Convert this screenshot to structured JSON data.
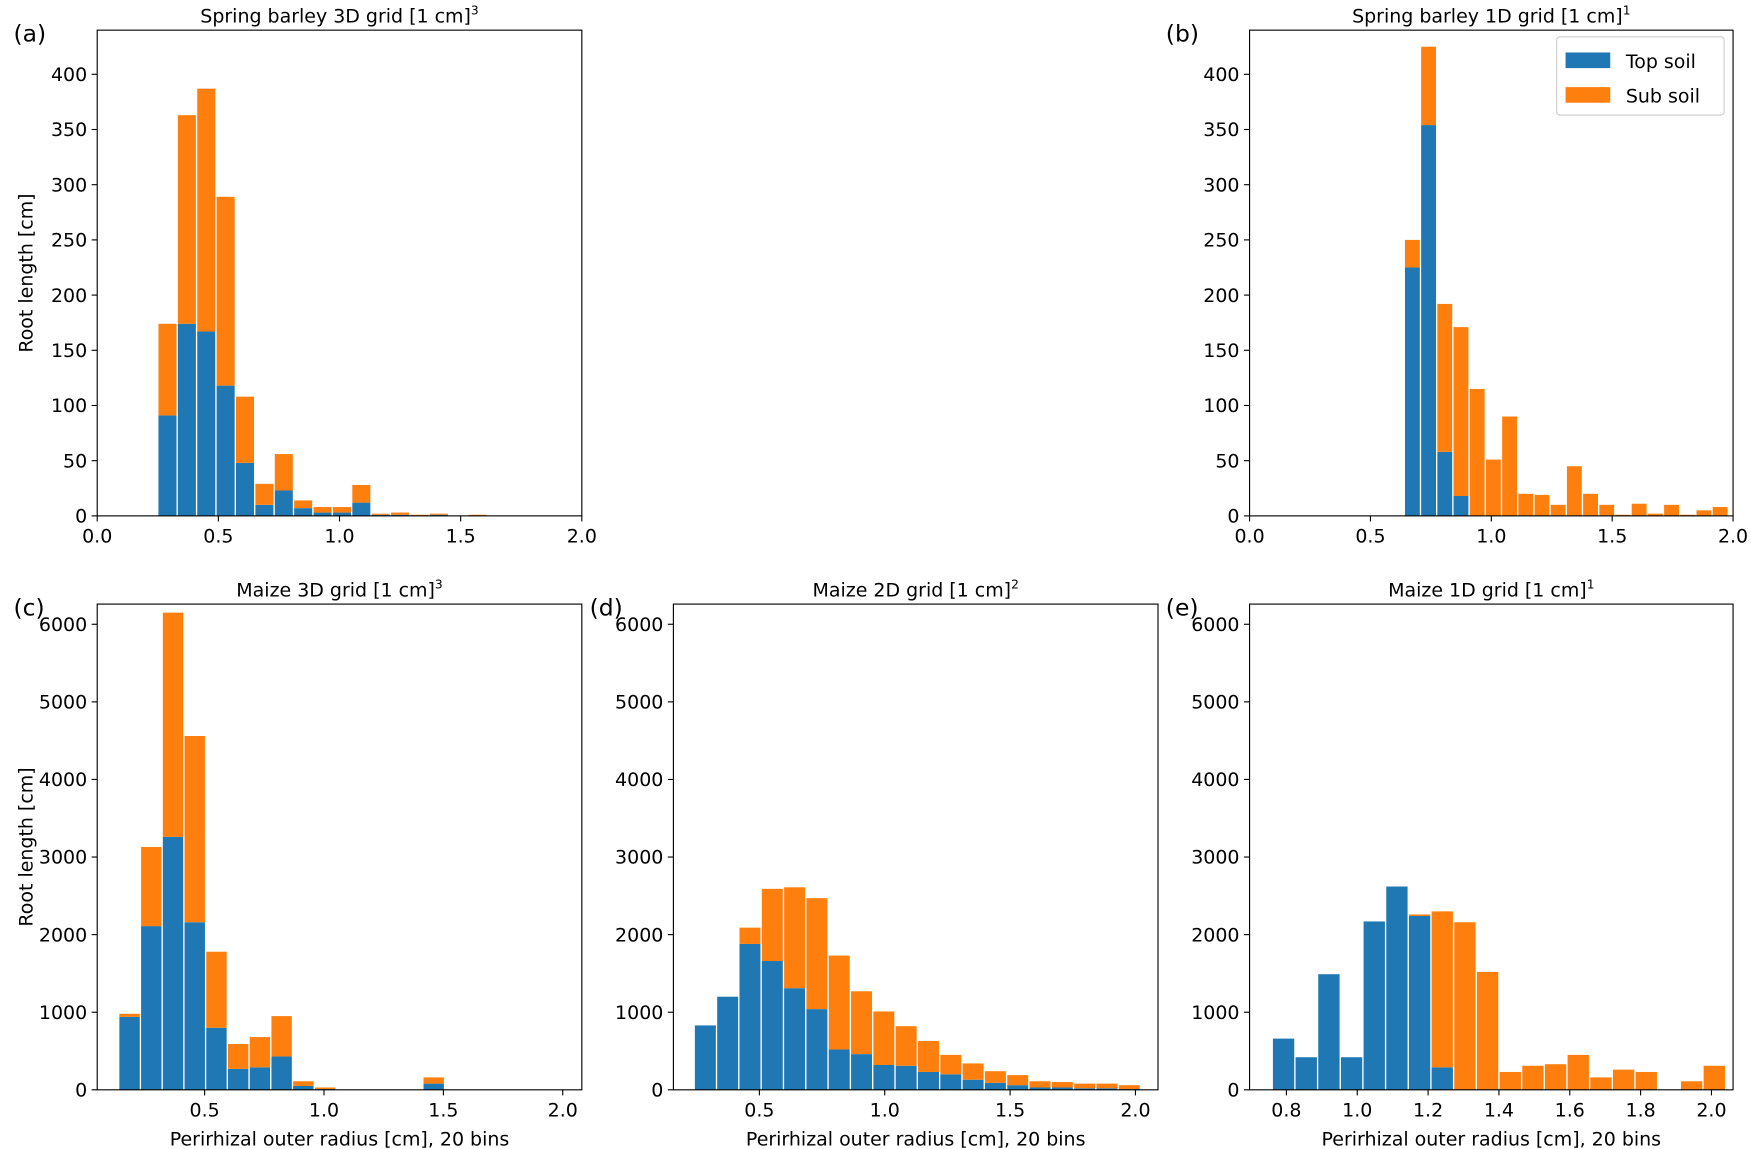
{
  "chart_data": [
    {
      "type": "histogram",
      "panel_label": "(a)",
      "title": "Spring barley 3D grid [1 cm]",
      "title_sup": "3",
      "ylabel": "Root length [cm]",
      "bins": [
        0.25,
        0.33,
        0.41,
        0.49,
        0.57,
        0.65,
        0.73,
        0.81,
        0.89,
        0.97,
        1.05,
        1.13,
        1.21,
        1.29,
        1.37,
        1.45,
        1.53,
        1.61,
        1.69,
        1.77,
        1.85
      ],
      "series": [
        {
          "name": "Top soil",
          "color": "#1f77b4",
          "values": [
            91,
            174,
            167,
            118,
            48,
            10,
            23,
            7,
            3,
            3,
            12,
            1,
            1,
            0,
            1,
            0,
            0,
            0,
            0,
            0
          ]
        },
        {
          "name": "Sub soil",
          "color": "#ff7f0e",
          "values": [
            83,
            189,
            220,
            171,
            60,
            19,
            33,
            7,
            5,
            5,
            16,
            1,
            2,
            1,
            1,
            0,
            1,
            0,
            0,
            0
          ]
        }
      ],
      "xlim": [
        0,
        2
      ],
      "ylim": [
        0,
        440
      ],
      "xticks": [
        {
          "value": 0,
          "label": "0.0"
        },
        0.5,
        {
          "value": 1,
          "label": "1.0"
        },
        1.5,
        {
          "value": 2,
          "label": "2.0"
        }
      ],
      "yticks": [
        0,
        50,
        100,
        150,
        200,
        250,
        300,
        350,
        400
      ]
    },
    {
      "type": "histogram",
      "panel_label": "(b)",
      "title": "Spring barley 1D grid [1 cm]",
      "title_sup": "1",
      "legend": "upper right",
      "bins": [
        0.64,
        0.707,
        0.774,
        0.841,
        0.908,
        0.975,
        1.042,
        1.109,
        1.176,
        1.243,
        1.31,
        1.377,
        1.444,
        1.511,
        1.578,
        1.645,
        1.712,
        1.779,
        1.846,
        1.913,
        1.98
      ],
      "series": [
        {
          "name": "Top soil",
          "color": "#1f77b4",
          "values": [
            225,
            354,
            58,
            18,
            0,
            0,
            0,
            0,
            0,
            0,
            0,
            0,
            0,
            0,
            0,
            0,
            0,
            0,
            0,
            0
          ]
        },
        {
          "name": "Sub soil",
          "color": "#ff7f0e",
          "values": [
            25,
            71,
            134,
            153,
            115,
            51,
            90,
            20,
            19,
            10,
            45,
            20,
            10,
            1,
            11,
            2,
            10,
            1,
            5,
            8
          ]
        }
      ],
      "xlim": [
        0,
        2
      ],
      "ylim": [
        0,
        440
      ],
      "xticks": [
        {
          "value": 0,
          "label": "0.0"
        },
        0.5,
        {
          "value": 1,
          "label": "1.0"
        },
        1.5,
        {
          "value": 2,
          "label": "2.0"
        }
      ],
      "yticks": [
        0,
        50,
        100,
        150,
        200,
        250,
        300,
        350,
        400
      ]
    },
    {
      "type": "histogram",
      "panel_label": "(c)",
      "title": "Maize 3D grid [1 cm]",
      "title_sup": "3",
      "ylabel": "Root length [cm]",
      "xlabel": "Perirhizal outer radius [cm], 20 bins",
      "bins": [
        0.14,
        0.231,
        0.322,
        0.413,
        0.504,
        0.595,
        0.686,
        0.777,
        0.868,
        0.959,
        1.05,
        1.141,
        1.232,
        1.323,
        1.414,
        1.505,
        1.596,
        1.687,
        1.778,
        1.869,
        1.96
      ],
      "series": [
        {
          "name": "Top soil",
          "color": "#1f77b4",
          "values": [
            940,
            2110,
            3260,
            2160,
            800,
            270,
            290,
            430,
            50,
            10,
            0,
            0,
            0,
            0,
            80,
            0,
            0,
            0,
            0,
            0
          ]
        },
        {
          "name": "Sub soil",
          "color": "#ff7f0e",
          "values": [
            40,
            1020,
            2890,
            2400,
            980,
            320,
            390,
            520,
            60,
            20,
            0,
            0,
            0,
            0,
            80,
            0,
            0,
            0,
            0,
            0
          ]
        }
      ],
      "xlim": [
        0.05,
        2.08
      ],
      "ylim": [
        0,
        6260
      ],
      "xticks": [
        0.5,
        {
          "value": 1,
          "label": "1.0"
        },
        1.5,
        {
          "value": 2,
          "label": "2.0"
        }
      ],
      "yticks": [
        0,
        1000,
        2000,
        3000,
        4000,
        5000,
        6000
      ]
    },
    {
      "type": "histogram",
      "panel_label": "(d)",
      "title": "Maize 2D grid [1 cm]",
      "title_sup": "2",
      "xlabel": "Perirhizal outer radius [cm], 20 bins",
      "bins": [
        0.24,
        0.329,
        0.418,
        0.507,
        0.596,
        0.685,
        0.774,
        0.863,
        0.952,
        1.041,
        1.13,
        1.219,
        1.308,
        1.397,
        1.486,
        1.575,
        1.664,
        1.753,
        1.842,
        1.931,
        2.02
      ],
      "series": [
        {
          "name": "Top soil",
          "color": "#1f77b4",
          "values": [
            830,
            1200,
            1880,
            1660,
            1310,
            1040,
            520,
            460,
            320,
            310,
            230,
            200,
            130,
            90,
            60,
            30,
            30,
            20,
            20,
            10
          ]
        },
        {
          "name": "Sub soil",
          "color": "#ff7f0e",
          "values": [
            0,
            0,
            210,
            930,
            1300,
            1430,
            1210,
            810,
            690,
            510,
            400,
            250,
            210,
            150,
            130,
            80,
            70,
            60,
            60,
            50
          ]
        }
      ],
      "xlim": [
        0.157,
        2.09
      ],
      "ylim": [
        0,
        6260
      ],
      "xticks": [
        0.5,
        {
          "value": 1,
          "label": "1.0"
        },
        1.5,
        {
          "value": 2,
          "label": "2.0"
        }
      ],
      "yticks": [
        0,
        1000,
        2000,
        3000,
        4000,
        5000,
        6000
      ]
    },
    {
      "type": "histogram",
      "panel_label": "(e)",
      "title": "Maize 1D grid [1 cm]",
      "title_sup": "1",
      "xlabel": "Perirhizal outer radius [cm], 20 bins",
      "bins": [
        0.76,
        0.824,
        0.888,
        0.952,
        1.016,
        1.08,
        1.144,
        1.208,
        1.272,
        1.336,
        1.4,
        1.464,
        1.528,
        1.592,
        1.656,
        1.72,
        1.784,
        1.848,
        1.912,
        1.976,
        2.04
      ],
      "series": [
        {
          "name": "Top soil",
          "color": "#1f77b4",
          "values": [
            660,
            420,
            1490,
            420,
            2170,
            2620,
            2240,
            290,
            0,
            0,
            0,
            0,
            0,
            0,
            0,
            0,
            0,
            0,
            0,
            0
          ]
        },
        {
          "name": "Sub soil",
          "color": "#ff7f0e",
          "values": [
            0,
            0,
            0,
            0,
            0,
            0,
            20,
            2010,
            2160,
            1520,
            230,
            310,
            330,
            450,
            160,
            260,
            230,
            0,
            110,
            310
          ]
        }
      ],
      "xlim": [
        0.696,
        2.061
      ],
      "ylim": [
        0,
        6260
      ],
      "xticks": [
        0.8,
        {
          "value": 1,
          "label": "1.0"
        },
        1.2,
        1.4,
        1.6,
        1.8,
        {
          "value": 2,
          "label": "2.0"
        }
      ],
      "yticks": [
        0,
        1000,
        2000,
        3000,
        4000,
        5000,
        6000
      ]
    }
  ]
}
